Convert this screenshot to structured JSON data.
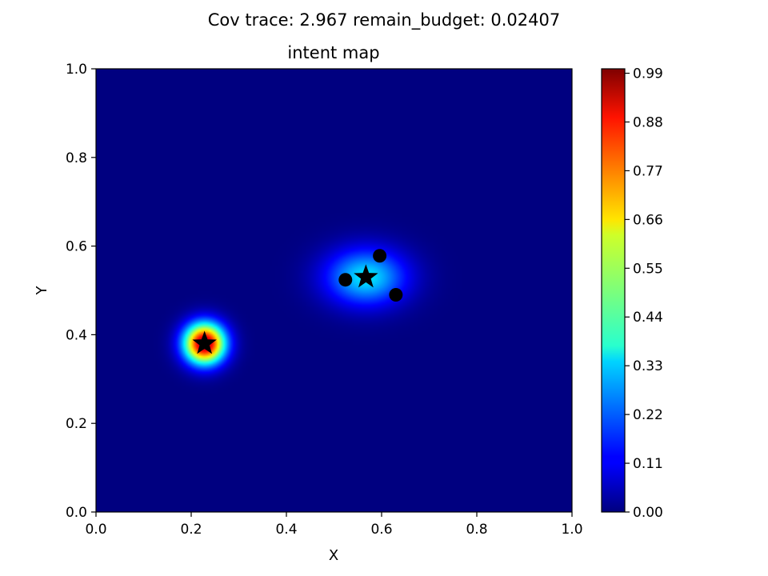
{
  "chart_data": {
    "type": "heatmap",
    "suptitle": "Cov trace: 2.967  remain_budget: 0.02407",
    "title": "intent map",
    "xlabel": "X",
    "ylabel": "Y",
    "xlim": [
      0.0,
      1.0
    ],
    "ylim": [
      0.0,
      1.0
    ],
    "xticks": [
      "0.0",
      "0.2",
      "0.4",
      "0.6",
      "0.8",
      "1.0"
    ],
    "yticks": [
      "0.0",
      "0.2",
      "0.4",
      "0.6",
      "0.8",
      "1.0"
    ],
    "grid": false,
    "colormap": "jet",
    "colorbar": {
      "range": [
        0.0,
        1.0
      ],
      "ticks": [
        0.0,
        0.11,
        0.22,
        0.33,
        0.44,
        0.55,
        0.66,
        0.77,
        0.88,
        0.99
      ],
      "tick_labels": [
        "0.00",
        "0.11",
        "0.22",
        "0.33",
        "0.44",
        "0.55",
        "0.66",
        "0.77",
        "0.88",
        "0.99"
      ]
    },
    "intensity_peaks": [
      {
        "x": 0.228,
        "y": 0.38,
        "peak": 1.0,
        "sigma_x": 0.03,
        "sigma_y": 0.032
      },
      {
        "x": 0.567,
        "y": 0.53,
        "peak": 0.35,
        "sigma_x": 0.06,
        "sigma_y": 0.045
      }
    ],
    "star_markers": [
      {
        "x": 0.228,
        "y": 0.38
      },
      {
        "x": 0.567,
        "y": 0.53
      }
    ],
    "circle_markers": [
      {
        "x": 0.524,
        "y": 0.524
      },
      {
        "x": 0.596,
        "y": 0.578
      },
      {
        "x": 0.63,
        "y": 0.49
      }
    ]
  }
}
